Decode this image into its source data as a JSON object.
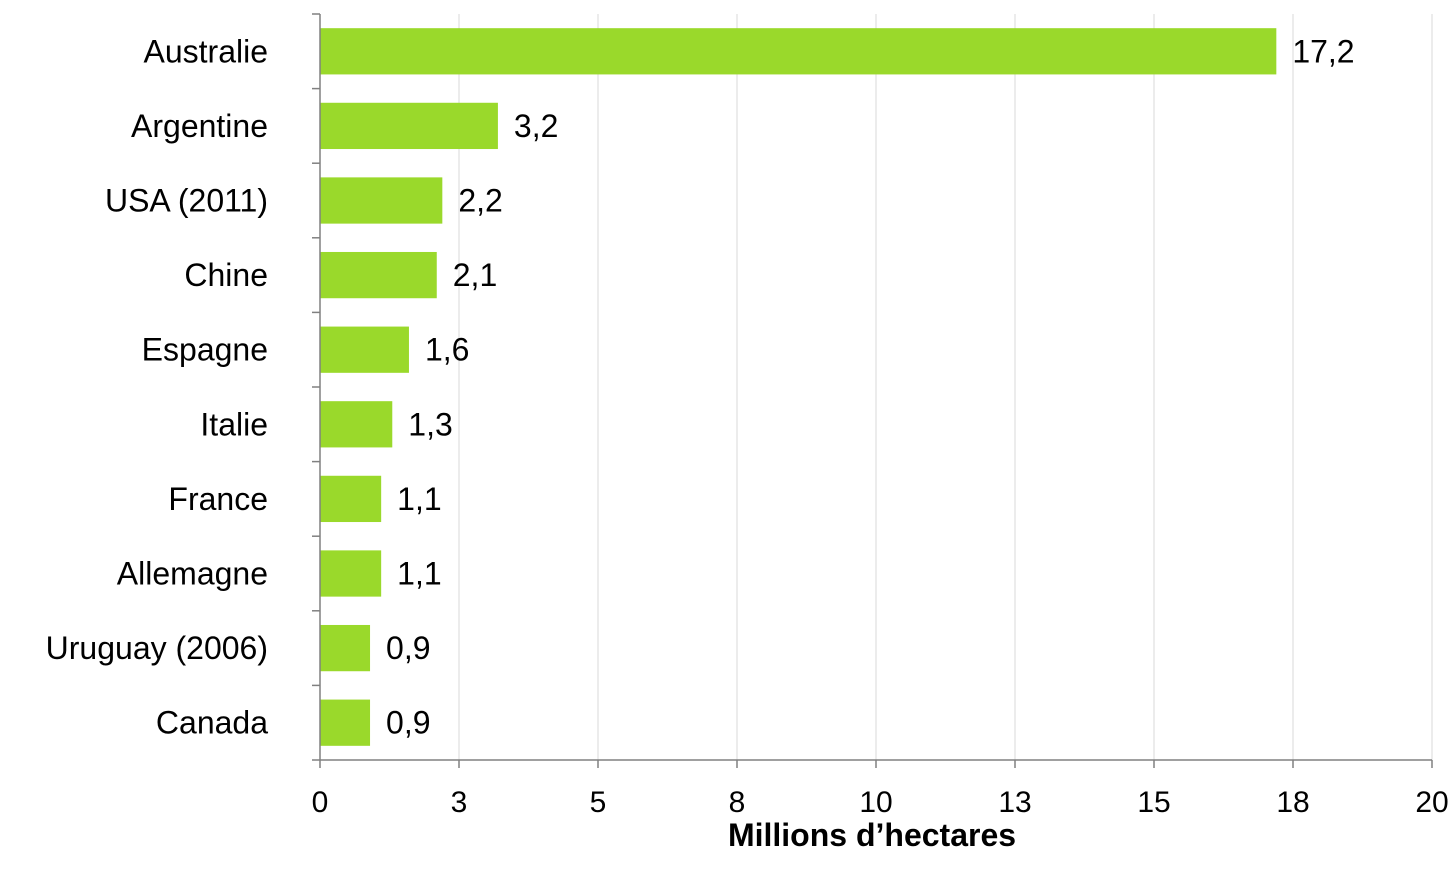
{
  "chart_data": {
    "type": "bar",
    "orientation": "horizontal",
    "categories": [
      "Australie",
      "Argentine",
      "USA (2011)",
      "Chine",
      "Espagne",
      "Italie",
      "France",
      "Allemagne",
      "Uruguay (2006)",
      "Canada"
    ],
    "values": [
      17.2,
      3.2,
      2.2,
      2.1,
      1.6,
      1.3,
      1.1,
      1.1,
      0.9,
      0.9
    ],
    "value_labels": [
      "17,2",
      "3,2",
      "2,2",
      "2,1",
      "1,6",
      "1,3",
      "1,1",
      "1,1",
      "0,9",
      "0,9"
    ],
    "xlabel": "Millions d’hectares",
    "xlim": [
      0,
      20
    ],
    "x_ticks": [
      0,
      2.5,
      5,
      7.5,
      10,
      12.5,
      15,
      17.5,
      20
    ],
    "x_tick_labels": [
      "0",
      "3",
      "5",
      "8",
      "10",
      "13",
      "15",
      "18",
      "20"
    ],
    "grid": "vertical",
    "legend": "none",
    "bar_color": "#9ad92b"
  }
}
